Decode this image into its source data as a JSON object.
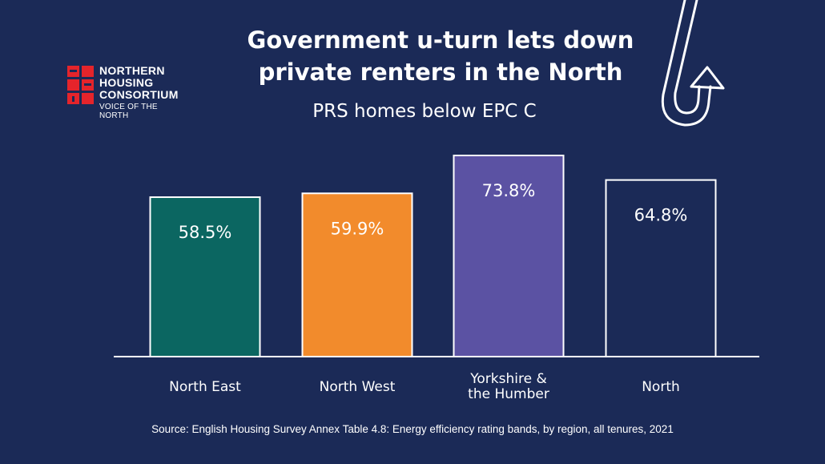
{
  "title_line1": "Government u-turn lets down",
  "title_line2": "private renters in the North",
  "logo": {
    "line1": "NORTHERN",
    "line2": "HOUSING",
    "line3": "CONSORTIUM",
    "tagline": "VOICE OF THE NORTH",
    "accent_color": "#e5242b"
  },
  "chart_data": {
    "type": "bar",
    "title": "PRS homes below EPC C",
    "categories": [
      "North East",
      "North West",
      "Yorkshire & the Humber",
      "North"
    ],
    "category_lines": [
      [
        "North East"
      ],
      [
        "North West"
      ],
      [
        "Yorkshire &",
        "the Humber"
      ],
      [
        "North"
      ]
    ],
    "values": [
      58.5,
      59.9,
      73.8,
      64.8
    ],
    "value_labels": [
      "58.5%",
      "59.9%",
      "73.8%",
      "64.8%"
    ],
    "colors": [
      "#0b6661",
      "#f28b2c",
      "#5b52a3",
      "#1b2a57"
    ],
    "ylim": [
      0,
      73.8
    ],
    "grid": false,
    "legend": "none"
  },
  "source": "Source: English Housing Survey Annex Table 4.8: Energy efficiency rating bands, by region, all tenures, 2021"
}
